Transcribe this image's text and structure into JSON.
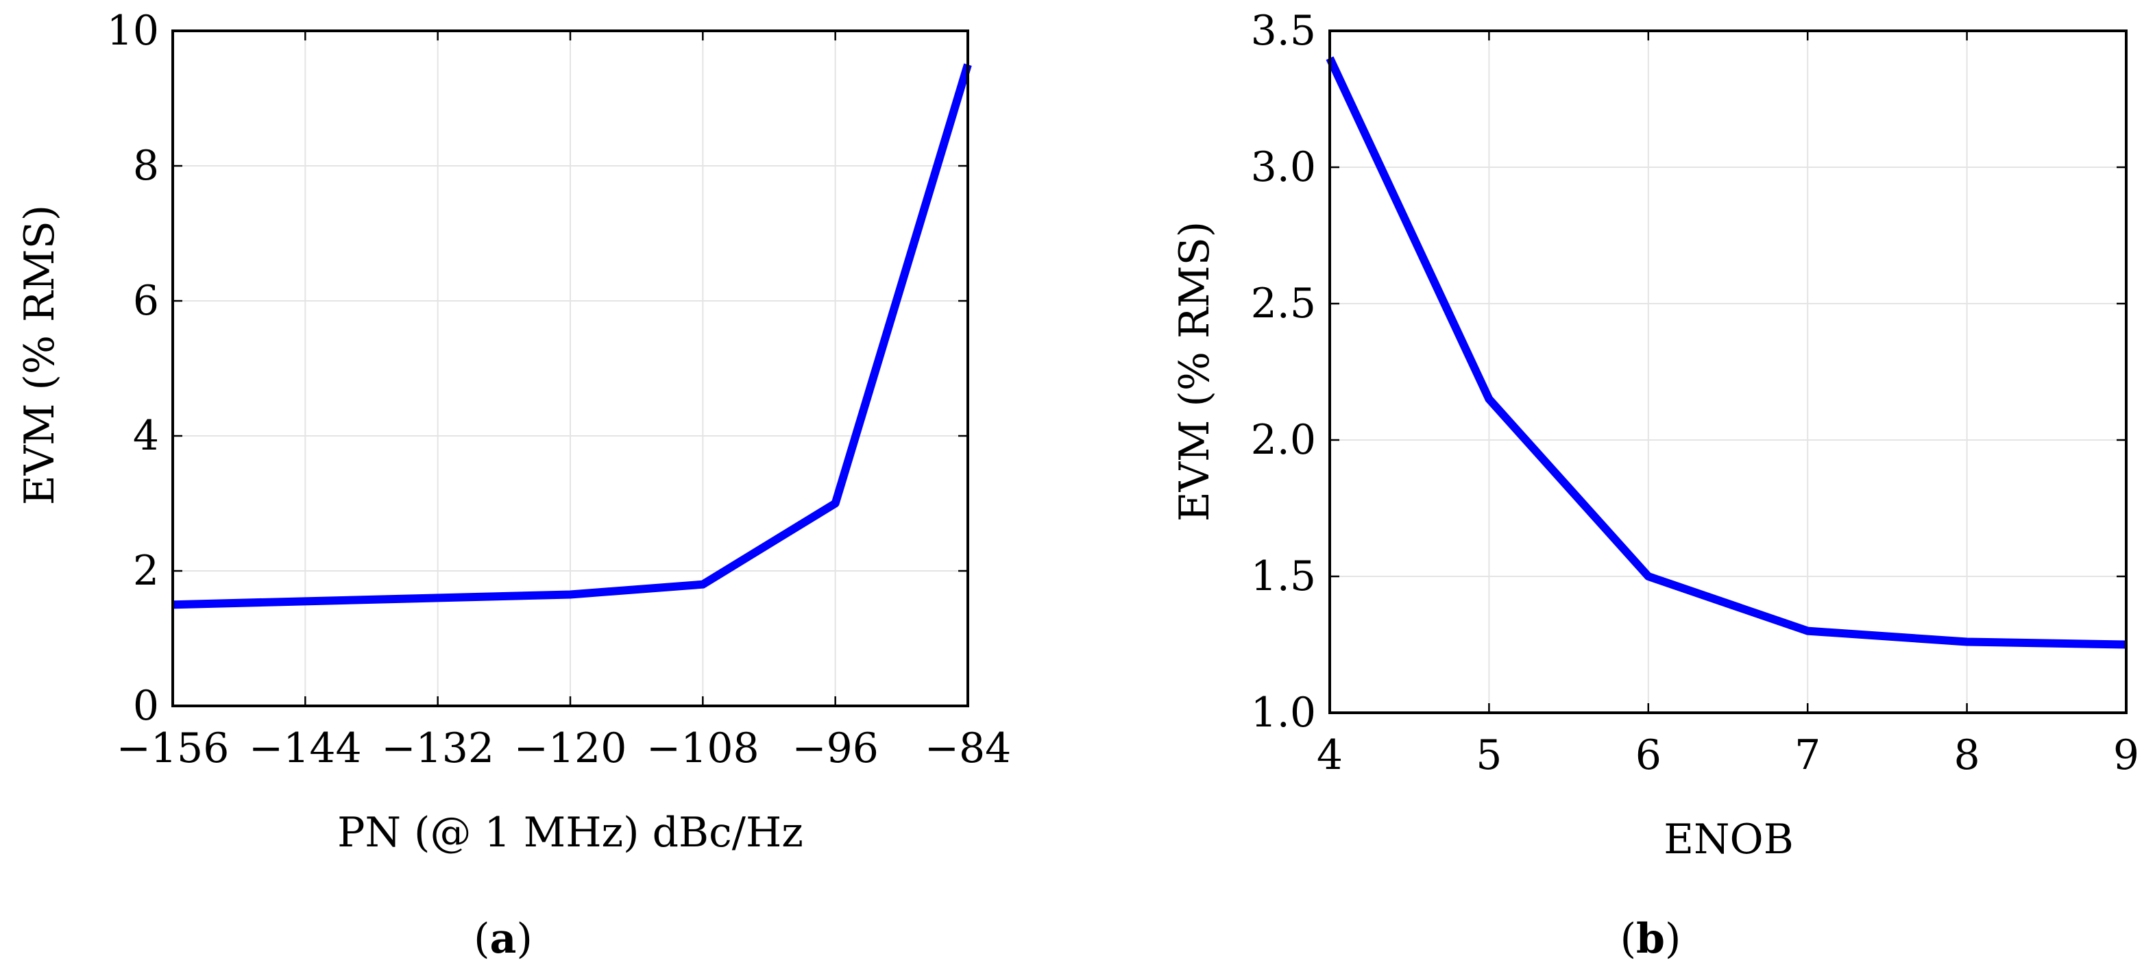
{
  "chart_data": [
    {
      "type": "line",
      "caption": "a",
      "xlabel": "PN (@ 1 MHz) dBc/Hz",
      "ylabel": "EVM  (% RMS)",
      "xlim": [
        -156,
        -84
      ],
      "ylim": [
        0,
        10
      ],
      "x_ticks": [
        -156,
        -144,
        -132,
        -120,
        -108,
        -96,
        -84
      ],
      "x_tick_labels": [
        "−156",
        "−144",
        "−132",
        "−120",
        "−108",
        "−96",
        "−84"
      ],
      "y_ticks": [
        0,
        2,
        4,
        6,
        8,
        10
      ],
      "y_tick_labels": [
        "0",
        "2",
        "4",
        "6",
        "8",
        "10"
      ],
      "grid": true,
      "color": "#0000ff",
      "series": [
        {
          "x": [
            -156,
            -120,
            -108,
            -96,
            -84
          ],
          "y": [
            1.5,
            1.65,
            1.8,
            3.0,
            9.5
          ]
        }
      ]
    },
    {
      "type": "line",
      "caption": "b",
      "xlabel": "ENOB",
      "ylabel": "EVM  (% RMS)",
      "xlim": [
        4,
        9
      ],
      "ylim": [
        1.0,
        3.5
      ],
      "x_ticks": [
        4,
        5,
        6,
        7,
        8,
        9
      ],
      "x_tick_labels": [
        "4",
        "5",
        "6",
        "7",
        "8",
        "9"
      ],
      "y_ticks": [
        1.0,
        1.5,
        2.0,
        2.5,
        3.0,
        3.5
      ],
      "y_tick_labels": [
        "1.0",
        "1.5",
        "2.0",
        "2.5",
        "3.0",
        "3.5"
      ],
      "grid": true,
      "color": "#0000ff",
      "series": [
        {
          "x": [
            4,
            5,
            6,
            7,
            8,
            9
          ],
          "y": [
            3.4,
            2.15,
            1.5,
            1.3,
            1.26,
            1.25
          ]
        }
      ]
    }
  ]
}
